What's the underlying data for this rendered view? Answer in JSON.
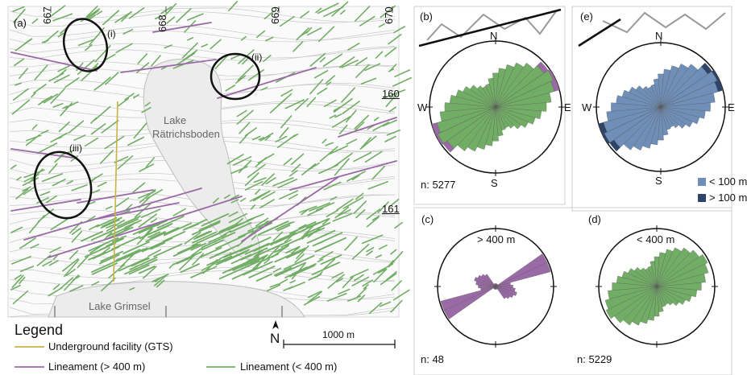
{
  "map": {
    "panel_label": "(a)",
    "zones": [
      "(i)",
      "(ii)",
      "(iii)"
    ],
    "lake1_line1": "Lake",
    "lake1_line2": "Rätrichsboden",
    "lake2": "Lake Grimsel",
    "grid_top": [
      "667",
      "668",
      "669",
      "670"
    ],
    "grid_right": [
      "160",
      "161"
    ],
    "north": "N",
    "scale": "1000 m"
  },
  "legend": {
    "title": "Legend",
    "items": [
      {
        "label": "Underground facility (GTS)",
        "color": "#c9b341"
      },
      {
        "label": "Lineament (> 400 m)",
        "color": "#9a6aa6"
      },
      {
        "label": "Lineament (< 400 m)",
        "color": "#72ad66"
      }
    ]
  },
  "roses": {
    "b": {
      "label": "(b)",
      "n": "n: 5277",
      "dirs": [
        "N",
        "E",
        "S",
        "W"
      ]
    },
    "c": {
      "label": "(c)",
      "n": "n: 48",
      "title": "> 400 m"
    },
    "d": {
      "label": "(d)",
      "n": "n: 5229",
      "title": "< 400 m"
    },
    "e": {
      "label": "(e)",
      "dirs": [
        "N",
        "E",
        "S",
        "W"
      ],
      "legend": [
        {
          "label": "< 100 m",
          "color": "#6f8fb8"
        },
        {
          "label": "> 100 m",
          "color": "#2e4468"
        }
      ]
    }
  },
  "colors": {
    "green": "#72ad66",
    "purple": "#9a6aa6",
    "blue": "#6f8fb8",
    "navy": "#2e4468",
    "lake": "#ececec",
    "contour": "#c8c8c8"
  }
}
